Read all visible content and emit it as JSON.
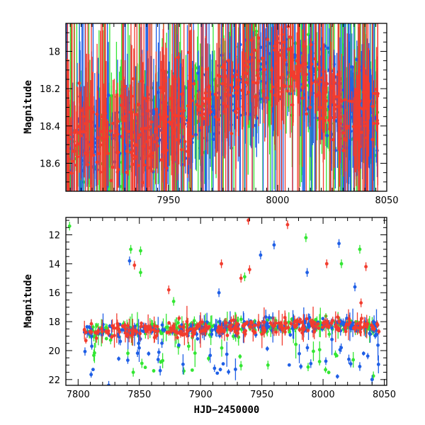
{
  "chart_data": [
    {
      "type": "scatter",
      "panel": "top",
      "title": "",
      "xlabel": "",
      "ylabel": "Magnitude",
      "xlim": [
        7903,
        8050
      ],
      "ylim": [
        18.75,
        17.85
      ],
      "y_inverted": true,
      "x_ticks": [
        7950,
        8000,
        8050
      ],
      "y_ticks": [
        18,
        18.2,
        18.4,
        18.6
      ],
      "series": [
        {
          "color": "#1f5fe6",
          "trend": [
            [
              7903,
              18.5
            ],
            [
              7920,
              18.45
            ],
            [
              7940,
              18.4
            ],
            [
              7960,
              18.35
            ],
            [
              7975,
              18.25
            ],
            [
              7985,
              18.15
            ],
            [
              8000,
              18.05
            ],
            [
              8010,
              18.1
            ],
            [
              8020,
              18.2
            ],
            [
              8030,
              18.3
            ],
            [
              8045,
              18.35
            ]
          ]
        },
        {
          "color": "#33e633",
          "trend": [
            [
              7903,
              18.5
            ],
            [
              7920,
              18.45
            ],
            [
              7940,
              18.4
            ],
            [
              7960,
              18.35
            ],
            [
              7975,
              18.25
            ],
            [
              7985,
              18.15
            ],
            [
              8000,
              18.05
            ],
            [
              8010,
              18.1
            ],
            [
              8020,
              18.2
            ],
            [
              8030,
              18.3
            ],
            [
              8045,
              18.35
            ]
          ]
        },
        {
          "color": "#f23c2e",
          "trend": [
            [
              7903,
              18.5
            ],
            [
              7920,
              18.45
            ],
            [
              7940,
              18.4
            ],
            [
              7960,
              18.35
            ],
            [
              7975,
              18.25
            ],
            [
              7985,
              18.15
            ],
            [
              8000,
              18.05
            ],
            [
              8010,
              18.1
            ],
            [
              8020,
              18.2
            ],
            [
              8030,
              18.3
            ],
            [
              8045,
              18.35
            ]
          ]
        }
      ],
      "grid": false
    },
    {
      "type": "scatter",
      "panel": "bottom",
      "title": "",
      "xlabel": "HJD−2450000",
      "ylabel": "Magnitude",
      "xlim": [
        7790,
        8052
      ],
      "ylim": [
        22.4,
        10.8
      ],
      "y_inverted": true,
      "x_ticks": [
        7800,
        7850,
        7900,
        7950,
        8000,
        8050
      ],
      "y_ticks": [
        12,
        14,
        16,
        18,
        20,
        22
      ],
      "series": [
        {
          "color": "#1f5fe6",
          "trend": [
            [
              7805,
              18.7
            ],
            [
              7850,
              18.6
            ],
            [
              7900,
              18.45
            ],
            [
              7950,
              18.35
            ],
            [
              8000,
              18.25
            ],
            [
              8045,
              18.4
            ]
          ]
        },
        {
          "color": "#33e633",
          "trend": [
            [
              7805,
              18.7
            ],
            [
              7850,
              18.6
            ],
            [
              7900,
              18.45
            ],
            [
              7950,
              18.35
            ],
            [
              8000,
              18.25
            ],
            [
              8045,
              18.4
            ]
          ]
        },
        {
          "color": "#f23c2e",
          "trend": [
            [
              7805,
              18.7
            ],
            [
              7850,
              18.6
            ],
            [
              7900,
              18.45
            ],
            [
              7950,
              18.35
            ],
            [
              8000,
              18.25
            ],
            [
              8045,
              18.4
            ]
          ]
        }
      ],
      "outliers": [
        {
          "x": 7793,
          "y": 11.4,
          "color": "#33e633"
        },
        {
          "x": 7843,
          "y": 13.0,
          "color": "#33e633"
        },
        {
          "x": 7846,
          "y": 14.1,
          "color": "#f23c2e"
        },
        {
          "x": 7842,
          "y": 13.8,
          "color": "#1f5fe6"
        },
        {
          "x": 7851,
          "y": 13.1,
          "color": "#33e633"
        },
        {
          "x": 7851,
          "y": 14.6,
          "color": "#33e633"
        },
        {
          "x": 7874,
          "y": 15.8,
          "color": "#f23c2e"
        },
        {
          "x": 7878,
          "y": 16.6,
          "color": "#33e633"
        },
        {
          "x": 7915,
          "y": 16.0,
          "color": "#1f5fe6"
        },
        {
          "x": 7917,
          "y": 14.0,
          "color": "#f23c2e"
        },
        {
          "x": 7933,
          "y": 15.0,
          "color": "#f23c2e"
        },
        {
          "x": 7936,
          "y": 14.9,
          "color": "#33e633"
        },
        {
          "x": 7939,
          "y": 11.0,
          "color": "#f23c2e"
        },
        {
          "x": 7940,
          "y": 14.4,
          "color": "#f23c2e"
        },
        {
          "x": 7949,
          "y": 13.4,
          "color": "#1f5fe6"
        },
        {
          "x": 7960,
          "y": 12.7,
          "color": "#1f5fe6"
        },
        {
          "x": 7971,
          "y": 11.3,
          "color": "#f23c2e"
        },
        {
          "x": 7986,
          "y": 12.2,
          "color": "#33e633"
        },
        {
          "x": 7987,
          "y": 14.6,
          "color": "#1f5fe6"
        },
        {
          "x": 8003,
          "y": 14.0,
          "color": "#f23c2e"
        },
        {
          "x": 8013,
          "y": 12.6,
          "color": "#1f5fe6"
        },
        {
          "x": 8015,
          "y": 14.0,
          "color": "#33e633"
        },
        {
          "x": 8026,
          "y": 15.6,
          "color": "#1f5fe6"
        },
        {
          "x": 8030,
          "y": 13.0,
          "color": "#33e633"
        },
        {
          "x": 8035,
          "y": 14.2,
          "color": "#f23c2e"
        },
        {
          "x": 8031,
          "y": 16.7,
          "color": "#f23c2e"
        },
        {
          "x": 7825,
          "y": 22.4,
          "color": "#1f5fe6"
        },
        {
          "x": 7845,
          "y": 21.5,
          "color": "#33e633"
        },
        {
          "x": 8040,
          "y": 22.0,
          "color": "#1f5fe6"
        },
        {
          "x": 8030,
          "y": 21.1,
          "color": "#1f5fe6"
        },
        {
          "x": 7990,
          "y": 20.9,
          "color": "#1f5fe6"
        },
        {
          "x": 7955,
          "y": 21.0,
          "color": "#33e633"
        }
      ],
      "grid": false
    }
  ]
}
